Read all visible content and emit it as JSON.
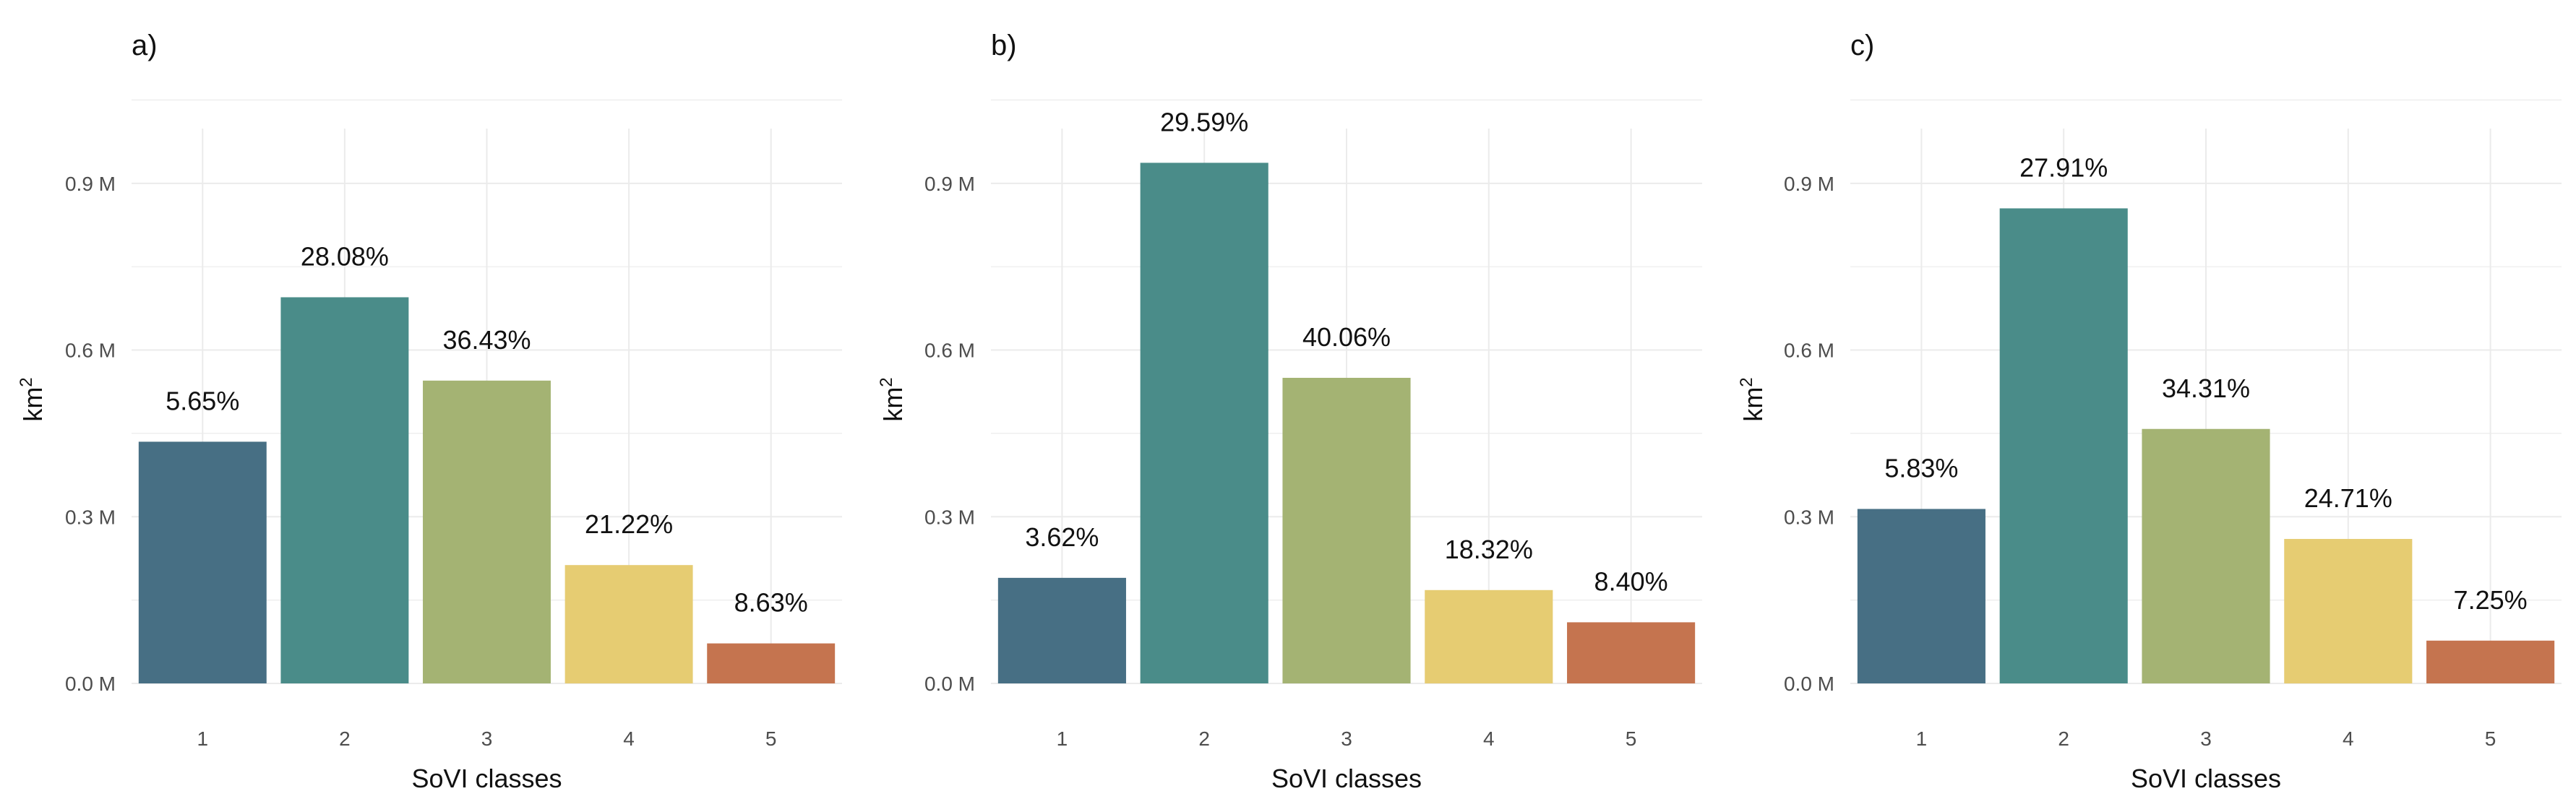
{
  "chart_data": [
    {
      "type": "bar",
      "panel": "a)",
      "categories": [
        "1",
        "2",
        "3",
        "4",
        "5"
      ],
      "values": [
        0.435,
        0.695,
        0.545,
        0.213,
        0.072
      ],
      "labels": [
        "5.65%",
        "28.08%",
        "36.43%",
        "21.22%",
        "8.63%"
      ],
      "xlabel": "SoVI classes",
      "ylabel": "km",
      "ylabel_superscript": "2",
      "ylim": [
        0,
        1.1
      ],
      "yticks": [
        {
          "value": 0.0,
          "label": "0.0 M"
        },
        {
          "value": 0.3,
          "label": "0.3 M"
        },
        {
          "value": 0.6,
          "label": "0.6 M"
        },
        {
          "value": 0.9,
          "label": "0.9 M"
        }
      ],
      "grid": true,
      "legend": "none"
    },
    {
      "type": "bar",
      "panel": "b)",
      "categories": [
        "1",
        "2",
        "3",
        "4",
        "5"
      ],
      "values": [
        0.19,
        0.937,
        0.55,
        0.168,
        0.11
      ],
      "labels": [
        "3.62%",
        "29.59%",
        "40.06%",
        "18.32%",
        "8.40%"
      ],
      "xlabel": "SoVI classes",
      "ylabel": "km",
      "ylabel_superscript": "2",
      "ylim": [
        0,
        1.1
      ],
      "yticks": [
        {
          "value": 0.0,
          "label": "0.0 M"
        },
        {
          "value": 0.3,
          "label": "0.3 M"
        },
        {
          "value": 0.6,
          "label": "0.6 M"
        },
        {
          "value": 0.9,
          "label": "0.9 M"
        }
      ],
      "grid": true,
      "legend": "none"
    },
    {
      "type": "bar",
      "panel": "c)",
      "categories": [
        "1",
        "2",
        "3",
        "4",
        "5"
      ],
      "values": [
        0.314,
        0.855,
        0.458,
        0.26,
        0.077
      ],
      "labels": [
        "5.83%",
        "27.91%",
        "34.31%",
        "24.71%",
        "7.25%"
      ],
      "xlabel": "SoVI classes",
      "ylabel": "km",
      "ylabel_superscript": "2",
      "ylim": [
        0,
        1.1
      ],
      "yticks": [
        {
          "value": 0.0,
          "label": "0.0 M"
        },
        {
          "value": 0.3,
          "label": "0.3 M"
        },
        {
          "value": 0.6,
          "label": "0.6 M"
        },
        {
          "value": 0.9,
          "label": "0.9 M"
        }
      ],
      "grid": true,
      "legend": "none"
    }
  ],
  "colors": {
    "bars": [
      "#476f84",
      "#4a8c89",
      "#a4b373",
      "#e6cc72",
      "#c5744f"
    ],
    "grid": "#ebebeb",
    "text": "#111111",
    "tick_text": "#4d4d4d"
  }
}
